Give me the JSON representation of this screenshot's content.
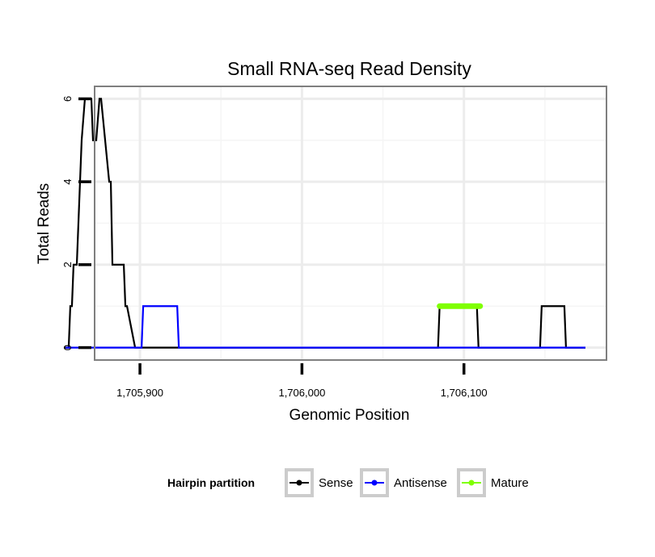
{
  "chart_data": {
    "type": "line",
    "title": "Small RNA-seq Read Density",
    "xlabel": "Genomic Position",
    "ylabel": "Total Reads",
    "xlim": [
      1705872,
      1706188
    ],
    "ylim": [
      -0.3,
      6.3
    ],
    "grid": true,
    "x_ticks": [
      {
        "value": 1705900,
        "label": "1,705,900"
      },
      {
        "value": 1706000,
        "label": "1,706,000"
      },
      {
        "value": 1706100,
        "label": "1,706,100"
      }
    ],
    "y_ticks": [
      {
        "value": 0,
        "label": "0"
      },
      {
        "value": 2,
        "label": "2"
      },
      {
        "value": 4,
        "label": "4"
      },
      {
        "value": 6,
        "label": "6"
      }
    ],
    "legend": {
      "title": "Hairpin partition",
      "position": "bottom",
      "items": [
        {
          "name": "Sense",
          "color": "#000000"
        },
        {
          "name": "Antisense",
          "color": "#0000ff"
        },
        {
          "name": "Mature",
          "color": "#7fff00"
        }
      ]
    },
    "series": [
      {
        "name": "Sense",
        "color": "#000000",
        "x": [
          1705853,
          1705856,
          1705857,
          1705858,
          1705859,
          1705860,
          1705861,
          1705864,
          1705866,
          1705870,
          1705871,
          1705873,
          1705875,
          1705876,
          1705881,
          1705882,
          1705883,
          1705890,
          1705891,
          1705892,
          1705897,
          1705898,
          1705899,
          1705906,
          1705908,
          1705909,
          1705911,
          1705913,
          1705914,
          1705916,
          1706084,
          1706085,
          1706108,
          1706109,
          1706147,
          1706148,
          1706162,
          1706163,
          1706175
        ],
        "values": [
          0,
          0,
          1,
          1,
          2,
          2,
          2,
          5,
          6,
          6,
          5,
          5,
          6,
          6,
          4,
          4,
          2,
          2,
          1,
          1,
          0,
          0,
          0,
          0,
          0,
          0,
          0,
          0,
          0,
          0,
          0,
          1,
          1,
          0,
          0,
          1,
          1,
          0,
          0
        ]
      },
      {
        "name": "Antisense",
        "color": "#0000ff",
        "x": [
          1705854,
          1705901,
          1705902,
          1705923,
          1705924,
          1706175
        ],
        "values": [
          0,
          0,
          1,
          1,
          0,
          0
        ]
      },
      {
        "name": "Mature",
        "color": "#7fff00",
        "x": [
          1706085,
          1706110
        ],
        "values": [
          1,
          1
        ]
      }
    ]
  }
}
